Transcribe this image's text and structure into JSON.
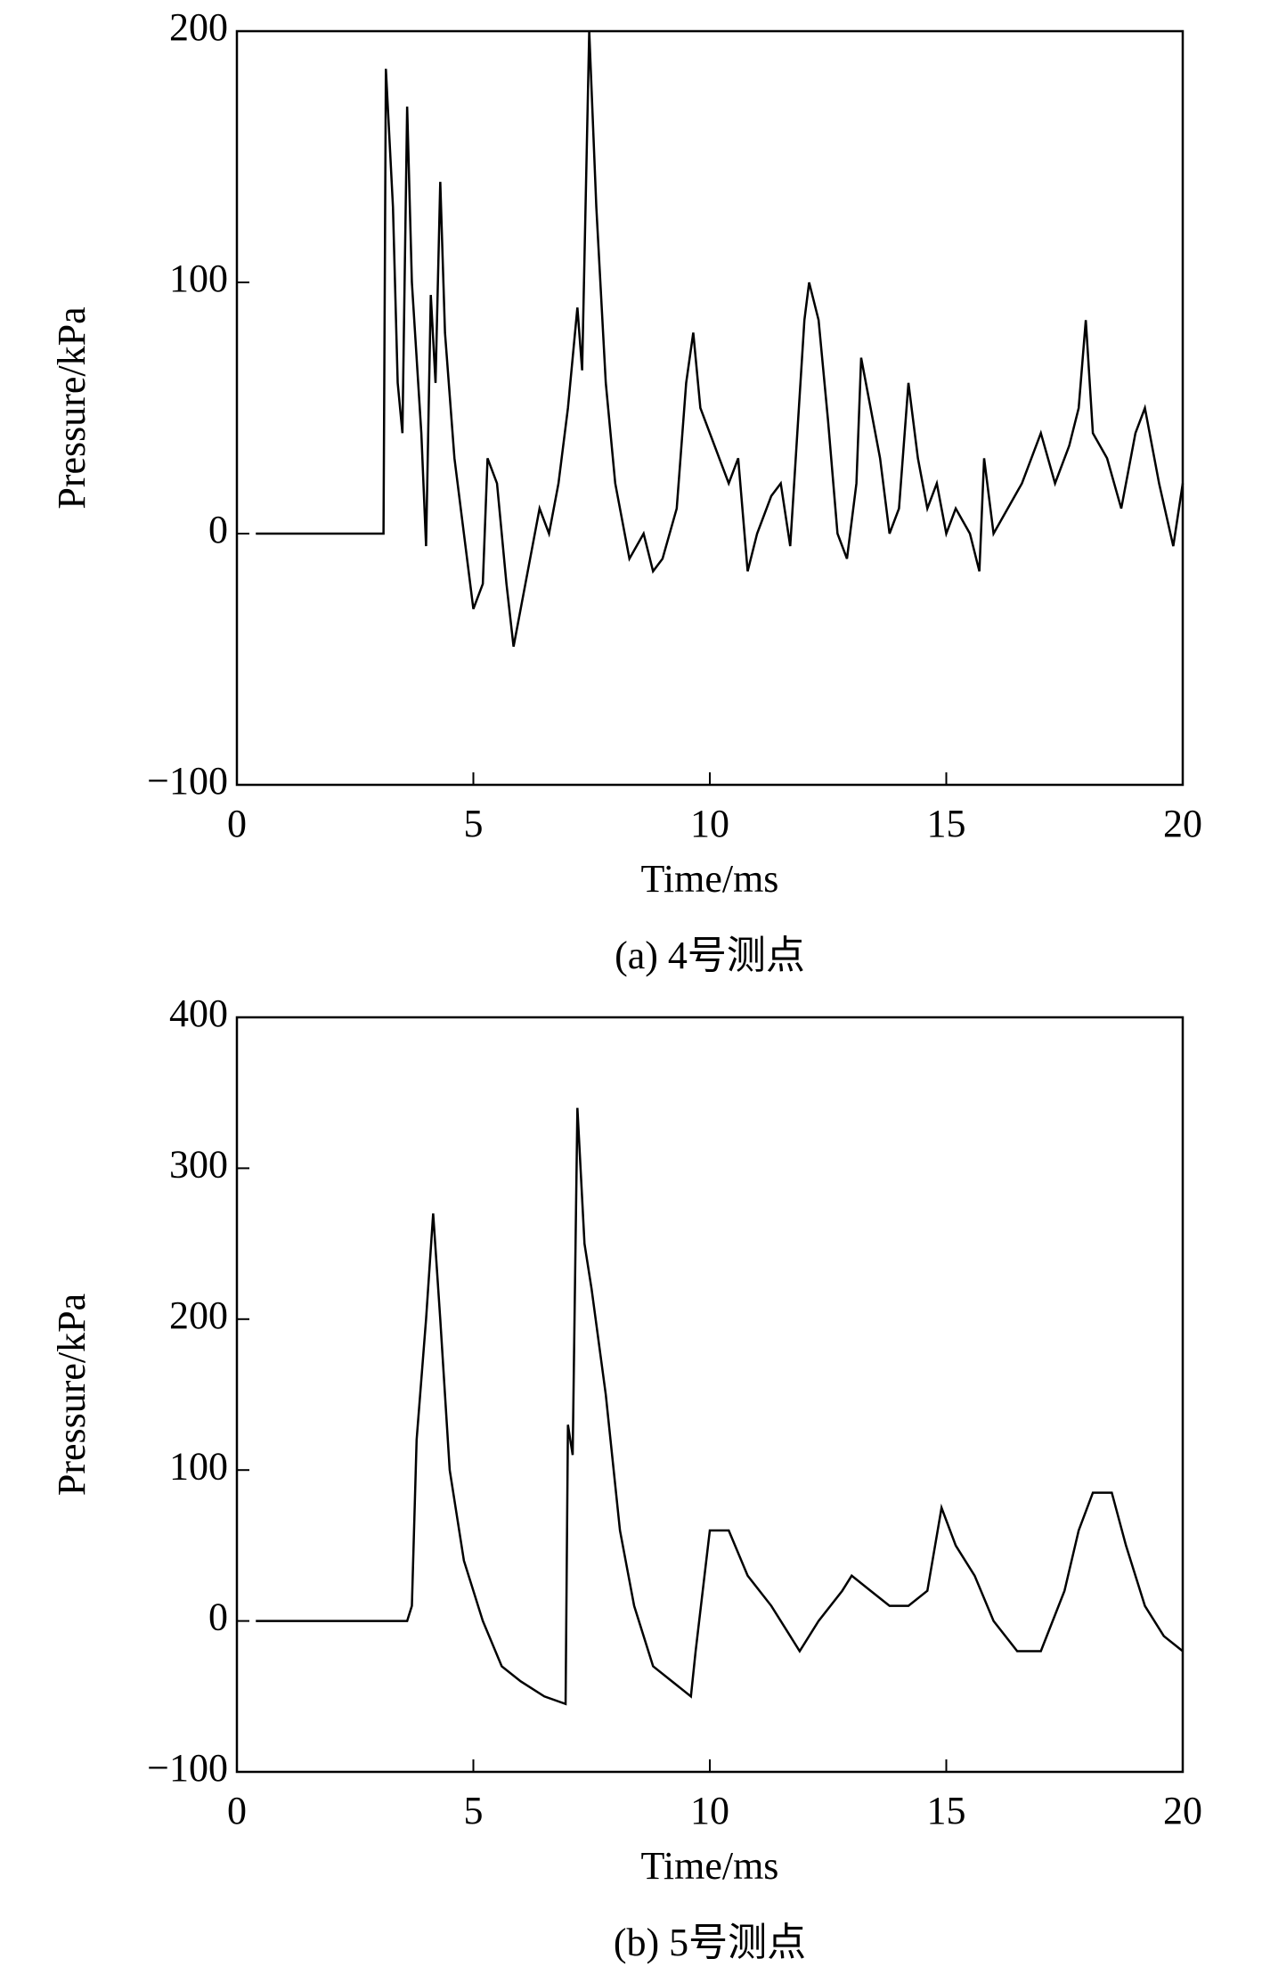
{
  "chart_data": [
    {
      "type": "line",
      "caption": "(a) 4号测点",
      "xlabel": "Time/ms",
      "ylabel": "Pressure/kPa",
      "xlim": [
        0,
        20
      ],
      "xticks": [
        0,
        5,
        10,
        15,
        20
      ],
      "ylim": [
        -100,
        200
      ],
      "yticks": [
        {
          "value": -100,
          "label": "−100"
        },
        0,
        100,
        200
      ],
      "series": [
        {
          "color": "#000000",
          "x": [
            0.4,
            3.1,
            3.15,
            3.3,
            3.4,
            3.5,
            3.6,
            3.7,
            3.9,
            4.0,
            4.1,
            4.2,
            4.3,
            4.4,
            4.6,
            4.8,
            5.0,
            5.2,
            5.3,
            5.5,
            5.7,
            5.85,
            6.0,
            6.2,
            6.4,
            6.6,
            6.8,
            7.0,
            7.2,
            7.3,
            7.45,
            7.6,
            7.8,
            8.0,
            8.3,
            8.6,
            8.8,
            9.0,
            9.3,
            9.5,
            9.65,
            9.8,
            10.0,
            10.2,
            10.4,
            10.6,
            10.8,
            11.0,
            11.3,
            11.5,
            11.7,
            12.0,
            12.1,
            12.3,
            12.5,
            12.7,
            12.9,
            13.1,
            13.2,
            13.4,
            13.6,
            13.8,
            14.0,
            14.2,
            14.4,
            14.6,
            14.8,
            15.0,
            15.2,
            15.5,
            15.7,
            15.8,
            16.0,
            16.3,
            16.6,
            17.0,
            17.3,
            17.6,
            17.8,
            17.95,
            18.1,
            18.4,
            18.7,
            19.0,
            19.2,
            19.5,
            19.8,
            20.0
          ],
          "values": [
            0,
            0,
            185,
            130,
            60,
            40,
            170,
            100,
            40,
            -5,
            95,
            60,
            140,
            80,
            30,
            0,
            -30,
            -20,
            30,
            20,
            -20,
            -45,
            -30,
            -10,
            10,
            0,
            20,
            50,
            90,
            65,
            200,
            130,
            60,
            20,
            -10,
            0,
            -15,
            -10,
            10,
            60,
            80,
            50,
            40,
            30,
            20,
            30,
            -15,
            0,
            15,
            20,
            -5,
            85,
            100,
            85,
            45,
            0,
            -10,
            20,
            70,
            50,
            30,
            0,
            10,
            60,
            30,
            10,
            20,
            0,
            10,
            0,
            -15,
            30,
            0,
            10,
            20,
            40,
            20,
            35,
            50,
            85,
            40,
            30,
            10,
            40,
            50,
            20,
            -5,
            20
          ]
        }
      ]
    },
    {
      "type": "line",
      "caption": "(b) 5号测点",
      "xlabel": "Time/ms",
      "ylabel": "Pressure/kPa",
      "xlim": [
        0,
        20
      ],
      "xticks": [
        0,
        5,
        10,
        15,
        20
      ],
      "ylim": [
        -100,
        400
      ],
      "yticks": [
        {
          "value": -100,
          "label": "−100"
        },
        0,
        100,
        200,
        300,
        400
      ],
      "series": [
        {
          "color": "#000000",
          "x": [
            0.4,
            3.6,
            3.7,
            3.8,
            4.0,
            4.15,
            4.3,
            4.5,
            4.8,
            5.2,
            5.6,
            6.0,
            6.5,
            6.95,
            7.0,
            7.1,
            7.2,
            7.35,
            7.5,
            7.8,
            8.1,
            8.4,
            8.8,
            9.2,
            9.6,
            9.7,
            10.0,
            10.4,
            10.8,
            11.3,
            11.9,
            12.3,
            12.8,
            13.0,
            13.4,
            13.8,
            14.2,
            14.6,
            14.9,
            15.2,
            15.6,
            16.0,
            16.5,
            17.0,
            17.5,
            17.8,
            18.1,
            18.5,
            18.8,
            19.2,
            19.6,
            20.0
          ],
          "values": [
            0,
            0,
            10,
            120,
            200,
            270,
            200,
            100,
            40,
            0,
            -30,
            -40,
            -50,
            -55,
            130,
            110,
            340,
            250,
            220,
            150,
            60,
            10,
            -30,
            -40,
            -50,
            -20,
            60,
            60,
            30,
            10,
            -20,
            0,
            20,
            30,
            20,
            10,
            10,
            20,
            75,
            50,
            30,
            0,
            -20,
            -20,
            20,
            60,
            85,
            85,
            50,
            10,
            -10,
            -20
          ]
        }
      ]
    }
  ]
}
